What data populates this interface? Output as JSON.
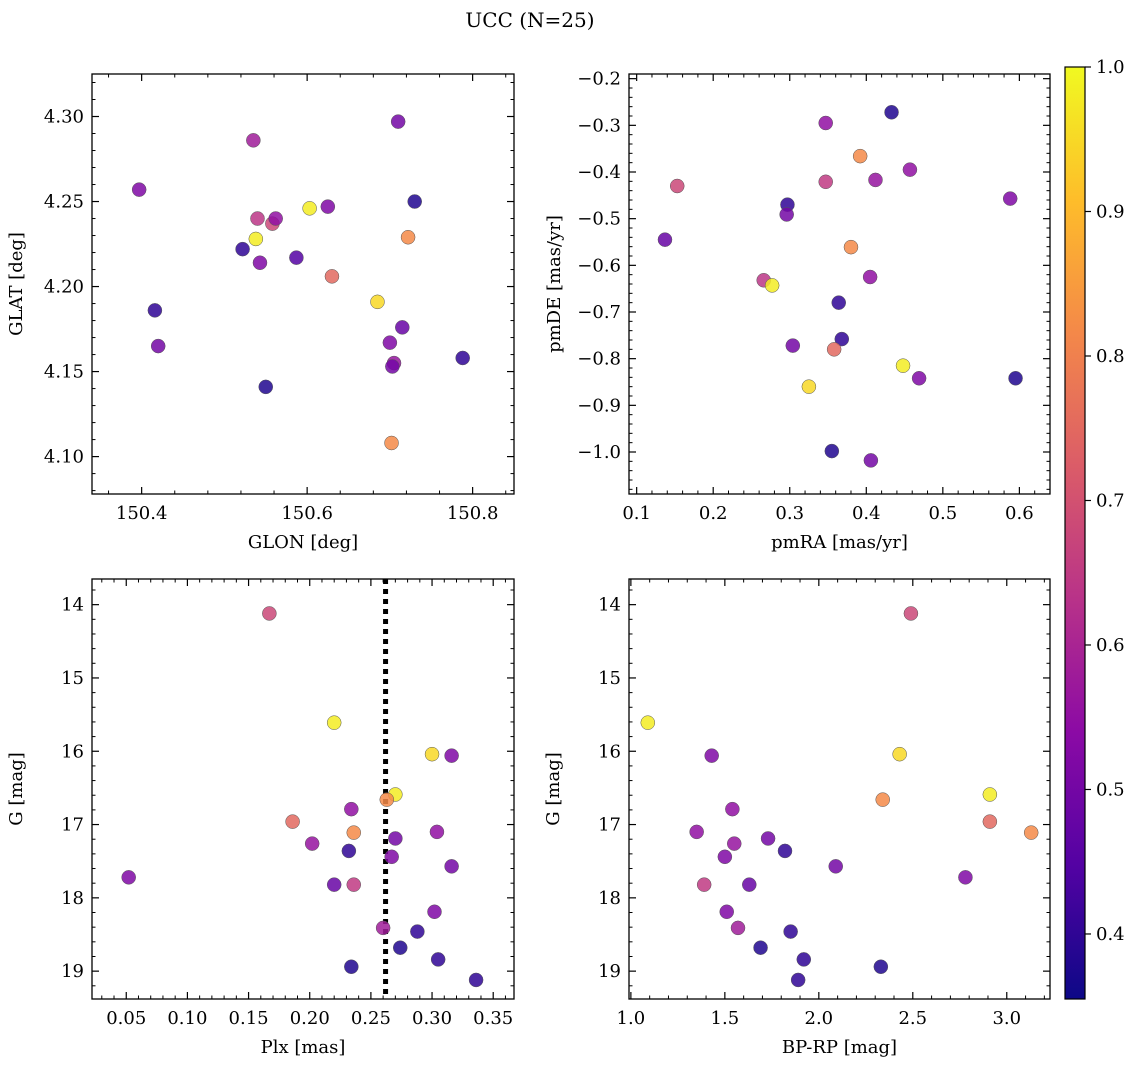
{
  "title": "UCC (N=25)",
  "colorbar": {
    "range": [
      0.355,
      1.0
    ],
    "ticks": [
      "0.4",
      "0.5",
      "0.6",
      "0.7",
      "0.8",
      "0.9",
      "1.0"
    ],
    "tick_values": [
      0.4,
      0.5,
      0.6,
      0.7,
      0.8,
      0.9,
      1.0
    ],
    "colormap": [
      "#0d0887",
      "#5302a3",
      "#8b0aa5",
      "#b83289",
      "#db5c68",
      "#f48849",
      "#febd2a",
      "#f0f921"
    ]
  },
  "chart_data": [
    {
      "type": "scatter",
      "xlabel": "GLON [deg]",
      "ylabel": "GLAT [deg]",
      "xlim": [
        150.34,
        150.85
      ],
      "ylim": [
        4.078,
        4.325
      ],
      "xticks": [
        150.4,
        150.6,
        150.8
      ],
      "xtick_labels": [
        "150.4",
        "150.6",
        "150.8"
      ],
      "yticks": [
        4.1,
        4.15,
        4.2,
        4.25,
        4.3
      ],
      "ytick_labels": [
        "4.10",
        "4.15",
        "4.20",
        "4.25",
        "4.30"
      ],
      "points": [
        {
          "x": 150.397,
          "y": 4.257,
          "c": 0.52
        },
        {
          "x": 150.535,
          "y": 4.286,
          "c": 0.58
        },
        {
          "x": 150.71,
          "y": 4.297,
          "c": 0.5
        },
        {
          "x": 150.73,
          "y": 4.25,
          "c": 0.38
        },
        {
          "x": 150.625,
          "y": 4.247,
          "c": 0.52
        },
        {
          "x": 150.603,
          "y": 4.246,
          "c": 0.98
        },
        {
          "x": 150.54,
          "y": 4.24,
          "c": 0.64
        },
        {
          "x": 150.558,
          "y": 4.237,
          "c": 0.68
        },
        {
          "x": 150.562,
          "y": 4.24,
          "c": 0.55
        },
        {
          "x": 150.722,
          "y": 4.229,
          "c": 0.82
        },
        {
          "x": 150.538,
          "y": 4.228,
          "c": 0.98
        },
        {
          "x": 150.522,
          "y": 4.222,
          "c": 0.4
        },
        {
          "x": 150.543,
          "y": 4.214,
          "c": 0.52
        },
        {
          "x": 150.587,
          "y": 4.217,
          "c": 0.45
        },
        {
          "x": 150.63,
          "y": 4.206,
          "c": 0.75
        },
        {
          "x": 150.685,
          "y": 4.191,
          "c": 0.95
        },
        {
          "x": 150.416,
          "y": 4.186,
          "c": 0.4
        },
        {
          "x": 150.715,
          "y": 4.176,
          "c": 0.48
        },
        {
          "x": 150.7,
          "y": 4.167,
          "c": 0.52
        },
        {
          "x": 150.42,
          "y": 4.165,
          "c": 0.5
        },
        {
          "x": 150.705,
          "y": 4.155,
          "c": 0.56
        },
        {
          "x": 150.703,
          "y": 4.153,
          "c": 0.5
        },
        {
          "x": 150.788,
          "y": 4.158,
          "c": 0.4
        },
        {
          "x": 150.55,
          "y": 4.141,
          "c": 0.38
        },
        {
          "x": 150.702,
          "y": 4.108,
          "c": 0.82
        }
      ]
    },
    {
      "type": "scatter",
      "xlabel": "pmRA [mas/yr]",
      "ylabel": "pmDE [mas/yr]",
      "xlim": [
        0.09,
        0.64
      ],
      "ylim": [
        -1.09,
        -0.19
      ],
      "xticks": [
        0.1,
        0.2,
        0.3,
        0.4,
        0.5,
        0.6
      ],
      "xtick_labels": [
        "0.1",
        "0.2",
        "0.3",
        "0.4",
        "0.5",
        "0.6"
      ],
      "yticks": [
        -1.0,
        -0.9,
        -0.8,
        -0.7,
        -0.6,
        -0.5,
        -0.4,
        -0.3,
        -0.2
      ],
      "ytick_labels": [
        "−1.0",
        "−0.9",
        "−0.8",
        "−0.7",
        "−0.6",
        "−0.5",
        "−0.4",
        "−0.3",
        "−0.2"
      ],
      "points": [
        {
          "x": 0.433,
          "y": -0.272,
          "c": 0.38
        },
        {
          "x": 0.347,
          "y": -0.295,
          "c": 0.55
        },
        {
          "x": 0.392,
          "y": -0.366,
          "c": 0.82
        },
        {
          "x": 0.457,
          "y": -0.395,
          "c": 0.55
        },
        {
          "x": 0.412,
          "y": -0.417,
          "c": 0.56
        },
        {
          "x": 0.347,
          "y": -0.421,
          "c": 0.65
        },
        {
          "x": 0.153,
          "y": -0.43,
          "c": 0.68
        },
        {
          "x": 0.588,
          "y": -0.457,
          "c": 0.52
        },
        {
          "x": 0.297,
          "y": -0.47,
          "c": 0.4
        },
        {
          "x": 0.296,
          "y": -0.491,
          "c": 0.5
        },
        {
          "x": 0.137,
          "y": -0.545,
          "c": 0.48
        },
        {
          "x": 0.38,
          "y": -0.561,
          "c": 0.82
        },
        {
          "x": 0.405,
          "y": -0.625,
          "c": 0.55
        },
        {
          "x": 0.266,
          "y": -0.632,
          "c": 0.64
        },
        {
          "x": 0.277,
          "y": -0.643,
          "c": 0.98
        },
        {
          "x": 0.364,
          "y": -0.68,
          "c": 0.4
        },
        {
          "x": 0.368,
          "y": -0.758,
          "c": 0.4
        },
        {
          "x": 0.304,
          "y": -0.772,
          "c": 0.5
        },
        {
          "x": 0.358,
          "y": -0.78,
          "c": 0.75
        },
        {
          "x": 0.448,
          "y": -0.815,
          "c": 0.98
        },
        {
          "x": 0.469,
          "y": -0.842,
          "c": 0.52
        },
        {
          "x": 0.595,
          "y": -0.842,
          "c": 0.38
        },
        {
          "x": 0.325,
          "y": -0.86,
          "c": 0.95
        },
        {
          "x": 0.355,
          "y": -0.998,
          "c": 0.38
        },
        {
          "x": 0.406,
          "y": -1.018,
          "c": 0.5
        }
      ]
    },
    {
      "type": "scatter",
      "xlabel": "Plx [mas]",
      "ylabel": "G [mag]",
      "xlim": [
        0.022,
        0.367
      ],
      "ylim": [
        19.38,
        13.65
      ],
      "y_inverted": true,
      "vline": {
        "x": 0.262,
        "style": "dotted"
      },
      "xticks": [
        0.05,
        0.1,
        0.15,
        0.2,
        0.25,
        0.3,
        0.35
      ],
      "xtick_labels": [
        "0.05",
        "0.10",
        "0.15",
        "0.20",
        "0.25",
        "0.30",
        "0.35"
      ],
      "yticks": [
        14,
        15,
        16,
        17,
        18,
        19
      ],
      "ytick_labels": [
        "14",
        "15",
        "16",
        "17",
        "18",
        "19"
      ],
      "points": [
        {
          "x": 0.167,
          "y": 14.12,
          "c": 0.68
        },
        {
          "x": 0.22,
          "y": 15.61,
          "c": 0.98
        },
        {
          "x": 0.3,
          "y": 16.04,
          "c": 0.95
        },
        {
          "x": 0.316,
          "y": 16.06,
          "c": 0.52
        },
        {
          "x": 0.27,
          "y": 16.59,
          "c": 0.98
        },
        {
          "x": 0.263,
          "y": 16.66,
          "c": 0.82
        },
        {
          "x": 0.234,
          "y": 16.79,
          "c": 0.55
        },
        {
          "x": 0.186,
          "y": 16.96,
          "c": 0.75
        },
        {
          "x": 0.236,
          "y": 17.11,
          "c": 0.82
        },
        {
          "x": 0.304,
          "y": 17.1,
          "c": 0.55
        },
        {
          "x": 0.27,
          "y": 17.19,
          "c": 0.5
        },
        {
          "x": 0.202,
          "y": 17.26,
          "c": 0.56
        },
        {
          "x": 0.232,
          "y": 17.36,
          "c": 0.4
        },
        {
          "x": 0.267,
          "y": 17.44,
          "c": 0.52
        },
        {
          "x": 0.316,
          "y": 17.57,
          "c": 0.5
        },
        {
          "x": 0.052,
          "y": 17.72,
          "c": 0.52
        },
        {
          "x": 0.22,
          "y": 17.82,
          "c": 0.48
        },
        {
          "x": 0.236,
          "y": 17.82,
          "c": 0.65
        },
        {
          "x": 0.302,
          "y": 18.19,
          "c": 0.52
        },
        {
          "x": 0.26,
          "y": 18.41,
          "c": 0.58
        },
        {
          "x": 0.288,
          "y": 18.46,
          "c": 0.4
        },
        {
          "x": 0.274,
          "y": 18.68,
          "c": 0.38
        },
        {
          "x": 0.305,
          "y": 18.84,
          "c": 0.4
        },
        {
          "x": 0.234,
          "y": 18.94,
          "c": 0.38
        },
        {
          "x": 0.336,
          "y": 19.12,
          "c": 0.4
        }
      ]
    },
    {
      "type": "scatter",
      "xlabel": "BP-RP [mag]",
      "ylabel": "G [mag]",
      "xlim": [
        0.99,
        3.23
      ],
      "ylim": [
        19.38,
        13.65
      ],
      "y_inverted": true,
      "xticks": [
        1.0,
        1.5,
        2.0,
        2.5,
        3.0
      ],
      "xtick_labels": [
        "1.0",
        "1.5",
        "2.0",
        "2.5",
        "3.0"
      ],
      "yticks": [
        14,
        15,
        16,
        17,
        18,
        19
      ],
      "ytick_labels": [
        "14",
        "15",
        "16",
        "17",
        "18",
        "19"
      ],
      "points": [
        {
          "x": 2.49,
          "y": 14.12,
          "c": 0.68
        },
        {
          "x": 1.09,
          "y": 15.61,
          "c": 0.98
        },
        {
          "x": 2.43,
          "y": 16.04,
          "c": 0.95
        },
        {
          "x": 1.43,
          "y": 16.06,
          "c": 0.52
        },
        {
          "x": 2.91,
          "y": 16.59,
          "c": 0.98
        },
        {
          "x": 2.34,
          "y": 16.66,
          "c": 0.82
        },
        {
          "x": 1.54,
          "y": 16.79,
          "c": 0.55
        },
        {
          "x": 2.91,
          "y": 16.96,
          "c": 0.75
        },
        {
          "x": 3.13,
          "y": 17.11,
          "c": 0.82
        },
        {
          "x": 1.35,
          "y": 17.1,
          "c": 0.55
        },
        {
          "x": 1.73,
          "y": 17.19,
          "c": 0.5
        },
        {
          "x": 1.55,
          "y": 17.26,
          "c": 0.56
        },
        {
          "x": 1.82,
          "y": 17.36,
          "c": 0.4
        },
        {
          "x": 1.5,
          "y": 17.44,
          "c": 0.52
        },
        {
          "x": 2.09,
          "y": 17.57,
          "c": 0.5
        },
        {
          "x": 2.78,
          "y": 17.72,
          "c": 0.52
        },
        {
          "x": 1.63,
          "y": 17.82,
          "c": 0.48
        },
        {
          "x": 1.39,
          "y": 17.82,
          "c": 0.65
        },
        {
          "x": 1.51,
          "y": 18.19,
          "c": 0.52
        },
        {
          "x": 1.57,
          "y": 18.41,
          "c": 0.58
        },
        {
          "x": 1.85,
          "y": 18.46,
          "c": 0.4
        },
        {
          "x": 1.69,
          "y": 18.68,
          "c": 0.38
        },
        {
          "x": 1.92,
          "y": 18.84,
          "c": 0.4
        },
        {
          "x": 2.33,
          "y": 18.94,
          "c": 0.38
        },
        {
          "x": 1.89,
          "y": 19.12,
          "c": 0.4
        }
      ]
    }
  ]
}
